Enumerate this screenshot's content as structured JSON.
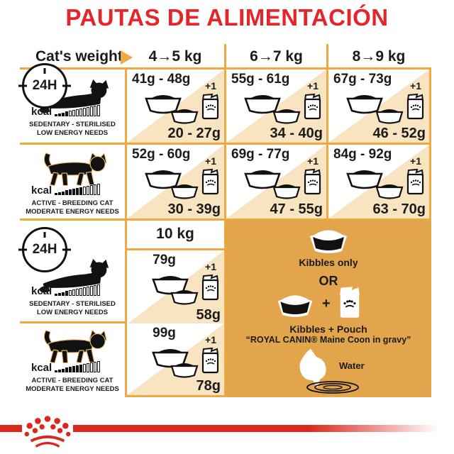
{
  "title": "PAUTAS DE ALIMENTACIÓN",
  "header": {
    "label": "Cat's weight",
    "cols": [
      "4→5 kg",
      "6→7 kg",
      "8→9 kg"
    ],
    "col_10kg": "10 kg"
  },
  "clock_label": "24H",
  "kcal_label": "kcal",
  "plus_one": "+1",
  "kcal_bars": {
    "total": 13,
    "sedentary_filled": 4,
    "active_filled": 8
  },
  "profiles": {
    "sedentary": {
      "line1": "SEDENTARY - STERILISED",
      "line2": "LOW ENERGY NEEDS"
    },
    "active": {
      "line1": "ACTIVE - BREEDING CAT",
      "line2": "MODERATE ENERGY NEEDS"
    }
  },
  "section1": {
    "sedentary": [
      {
        "kibbles": "41g - 48g",
        "mixed": "20 - 27g"
      },
      {
        "kibbles": "55g - 61g",
        "mixed": "34 - 40g"
      },
      {
        "kibbles": "67g - 73g",
        "mixed": "46 - 52g"
      }
    ],
    "active": [
      {
        "kibbles": "52g - 60g",
        "mixed": "30 - 39g"
      },
      {
        "kibbles": "69g - 77g",
        "mixed": "47 - 55g"
      },
      {
        "kibbles": "84g - 92g",
        "mixed": "63 - 70g"
      }
    ]
  },
  "section2": {
    "sedentary": {
      "kibbles": "79g",
      "mixed": "58g"
    },
    "active": {
      "kibbles": "99g",
      "mixed": "78g"
    }
  },
  "panel": {
    "kibbles_only": "Kibbles only",
    "or": "OR",
    "plus": "+",
    "kibbles_pouch": "Kibbles + Pouch",
    "gravy": "“ROYAL CANIN® Maine Coon in gravy”",
    "water": "Water"
  },
  "colors": {
    "title_red": "#e42529",
    "logo_red": "#da291c",
    "border_orange": "#f0a840",
    "cell_beige": "#f9e4c2",
    "panel_orange": "#e2a54b",
    "text": "#1b1b1b"
  }
}
